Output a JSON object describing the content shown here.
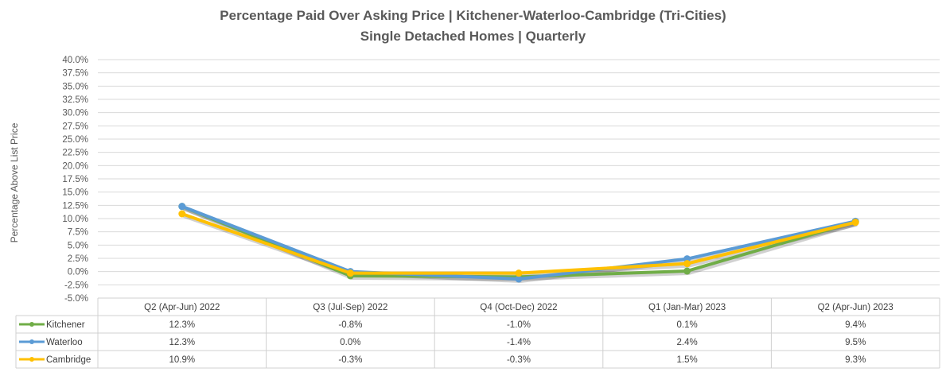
{
  "chart_data": {
    "type": "line",
    "title": "Percentage Paid Over Asking Price | Kitchener-Waterloo-Cambridge (Tri-Cities)",
    "subtitle": "Single Detached Homes | Quarterly",
    "xlabel": "",
    "ylabel": "Percentage Above List Price",
    "ylim": [
      -5.0,
      40.0
    ],
    "ytick_step": 2.5,
    "yticks": [
      "40.0%",
      "37.5%",
      "35.0%",
      "32.5%",
      "30.0%",
      "27.5%",
      "25.0%",
      "22.5%",
      "20.0%",
      "17.5%",
      "15.0%",
      "12.5%",
      "10.0%",
      "7.5%",
      "5.0%",
      "2.5%",
      "0.0%",
      "-2.5%",
      "-5.0%"
    ],
    "categories": [
      "Q2 (Apr-Jun) 2022",
      "Q3 (Jul-Sep) 2022",
      "Q4 (Oct-Dec) 2022",
      "Q1 (Jan-Mar) 2023",
      "Q2 (Apr-Jun) 2023"
    ],
    "grid": true,
    "legend": "data-table-left",
    "series": [
      {
        "name": "Kitchener",
        "color": "#70ad47",
        "values": [
          12.3,
          -0.8,
          -1.0,
          0.1,
          9.4
        ],
        "labels": [
          "12.3%",
          "-0.8%",
          "-1.0%",
          "0.1%",
          "9.4%"
        ]
      },
      {
        "name": "Waterloo",
        "color": "#5b9bd5",
        "values": [
          12.3,
          0.0,
          -1.4,
          2.4,
          9.5
        ],
        "labels": [
          "12.3%",
          "0.0%",
          "-1.4%",
          "2.4%",
          "9.5%"
        ]
      },
      {
        "name": "Cambridge",
        "color": "#ffc000",
        "values": [
          10.9,
          -0.3,
          -0.3,
          1.5,
          9.3
        ],
        "labels": [
          "10.9%",
          "-0.3%",
          "-0.3%",
          "1.5%",
          "9.3%"
        ]
      }
    ]
  }
}
